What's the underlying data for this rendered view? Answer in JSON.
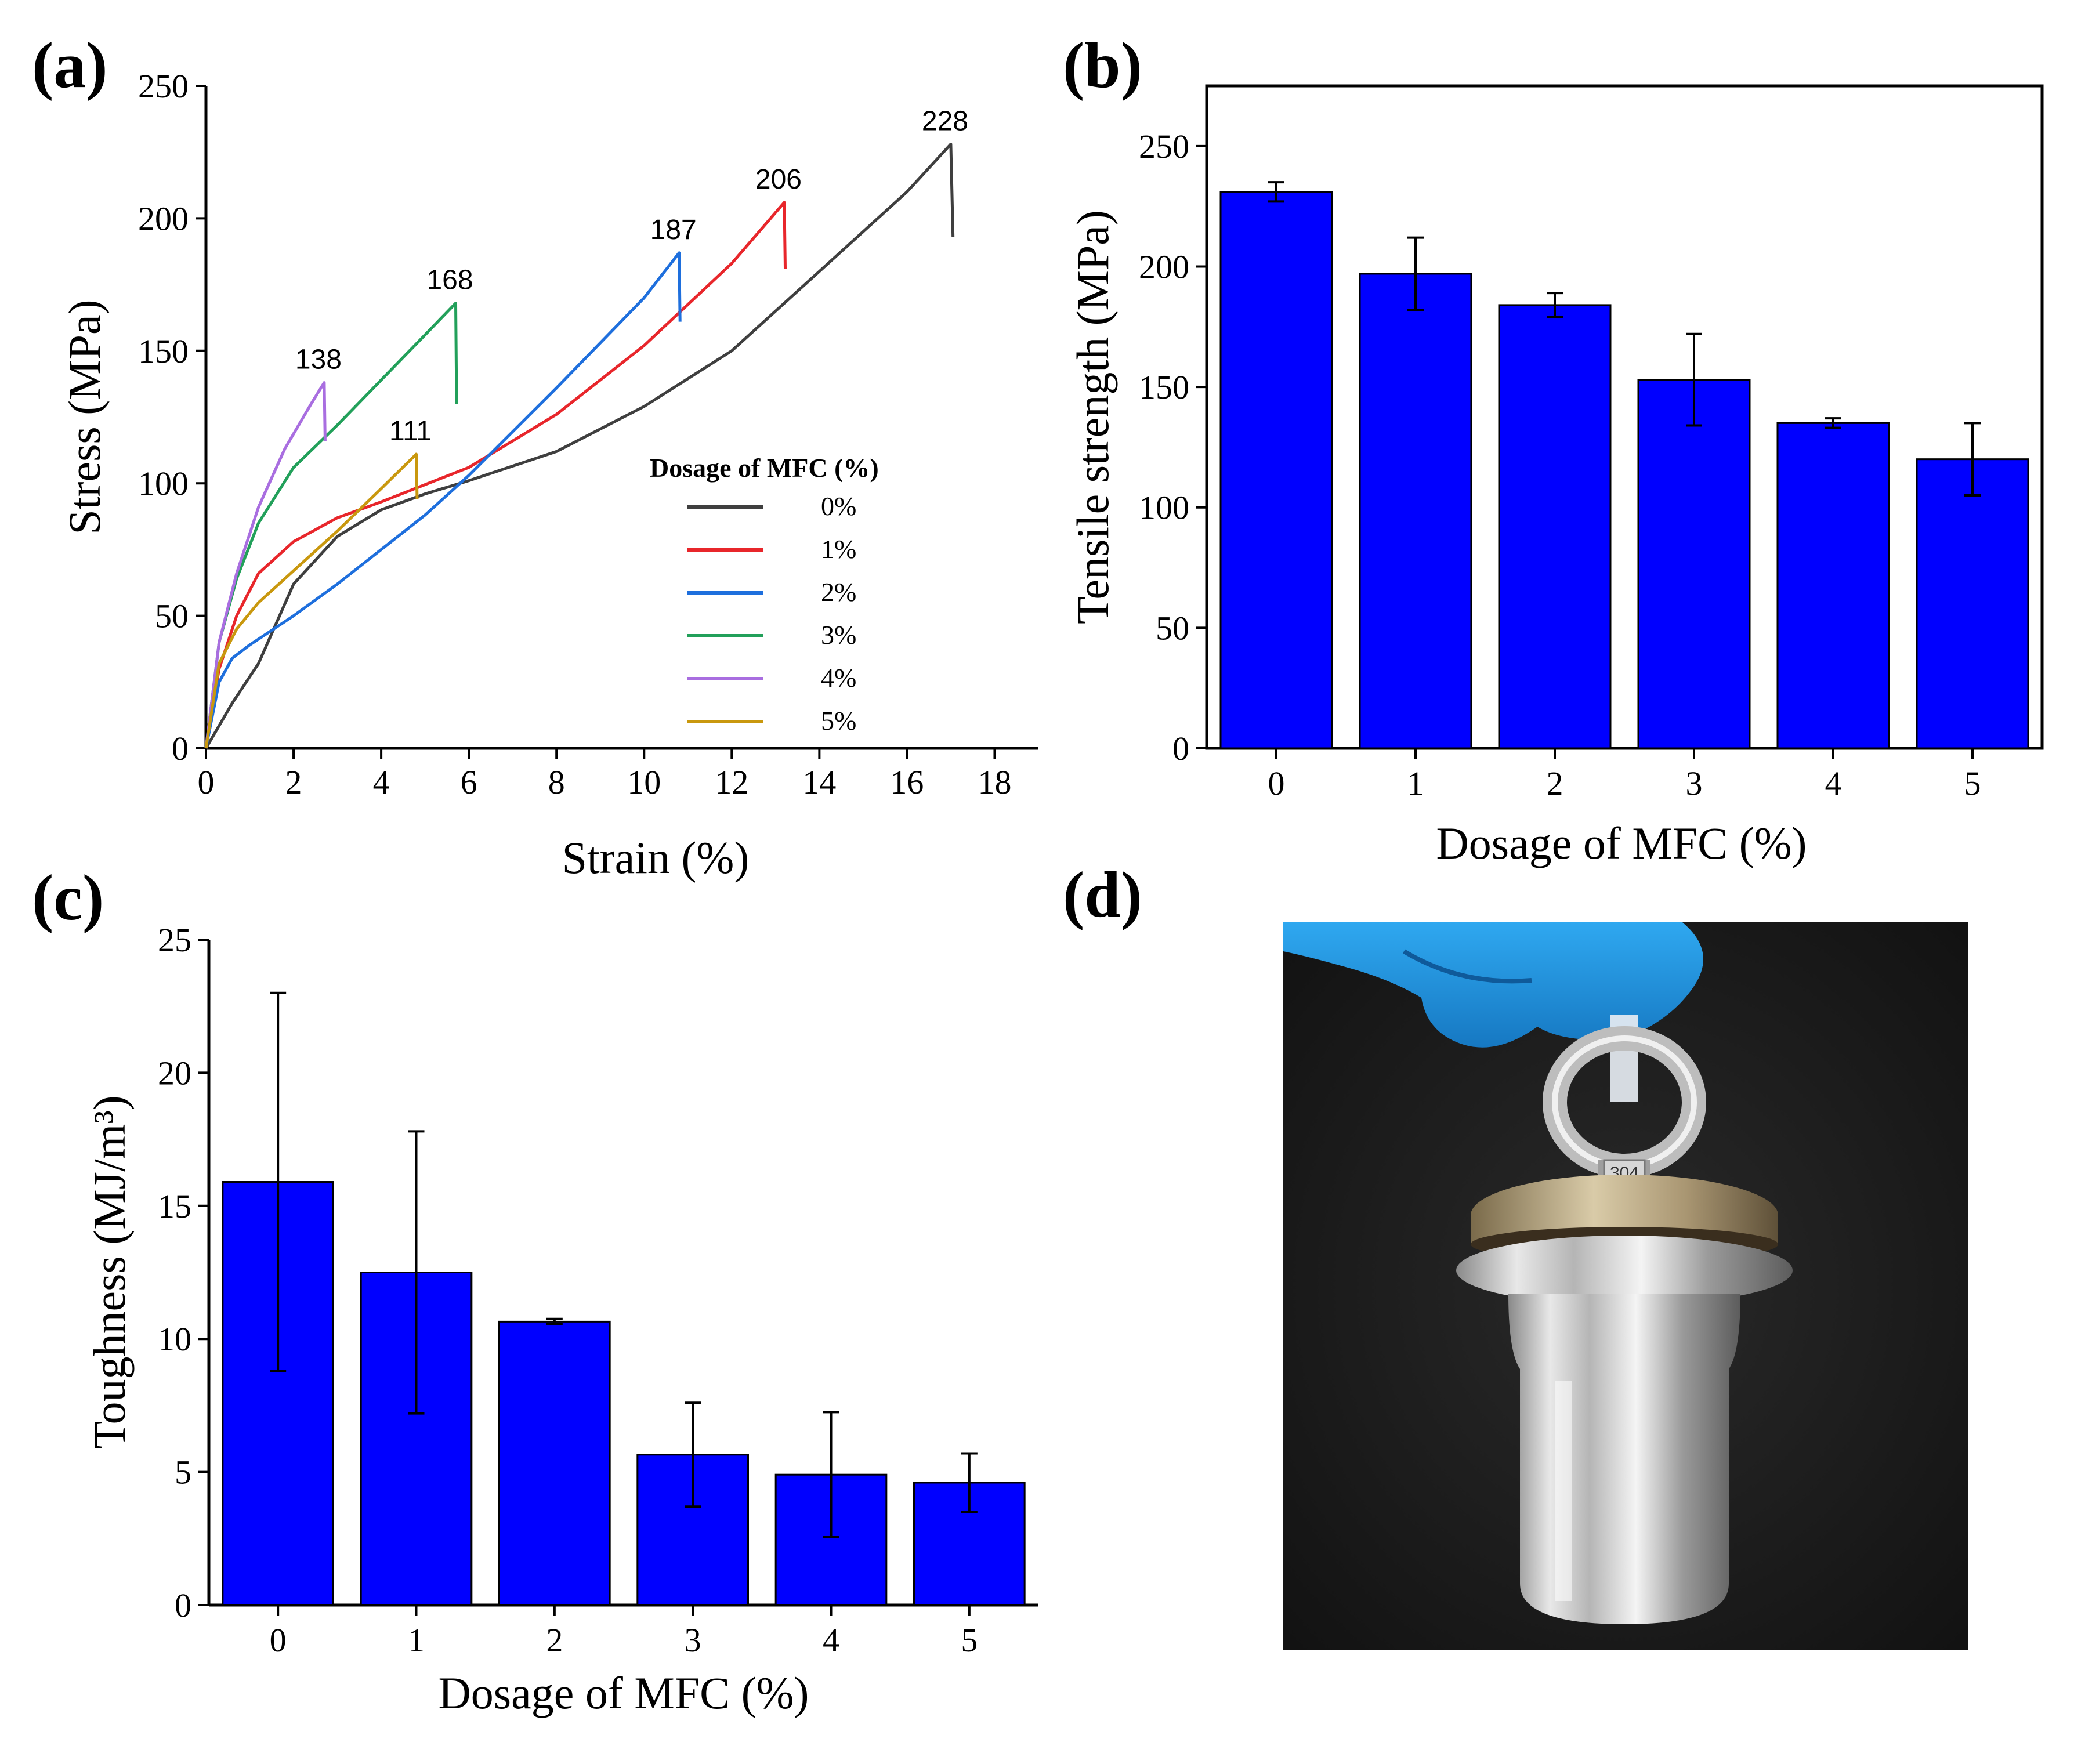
{
  "panels": {
    "a": {
      "label": "(a)"
    },
    "b": {
      "label": "(b)"
    },
    "c": {
      "label": "(c)"
    },
    "d": {
      "label": "(d)"
    }
  },
  "photo": {
    "weight_stamp": "304",
    "colors": {
      "glove": "#1e95e6",
      "background": "#1a1a1a",
      "metal": "#c9c9c9"
    }
  },
  "chart_data": [
    {
      "id": "a",
      "type": "line",
      "xlabel": "Strain (%)",
      "ylabel": "Stress (MPa)",
      "xlim": [
        0,
        19
      ],
      "ylim": [
        0,
        250
      ],
      "xticks": [
        "0",
        "2",
        "4",
        "6",
        "8",
        "10",
        "12",
        "14",
        "16",
        "18"
      ],
      "yticks": [
        "0",
        "50",
        "100",
        "150",
        "200",
        "250"
      ],
      "legend": {
        "title": "Dosage of  MFC (%)",
        "position": "center-right"
      },
      "series": [
        {
          "name": "0%",
          "color": "#3f3f3f",
          "peak_label": "228",
          "x": [
            0,
            0.6,
            1.2,
            2.0,
            3.0,
            4.0,
            5.0,
            6.0,
            8.0,
            10.0,
            12.0,
            14.0,
            16.0,
            17.0,
            17.0,
            17.05
          ],
          "y": [
            0,
            17,
            32,
            62,
            80,
            90,
            96,
            101,
            112,
            129,
            150,
            180,
            210,
            228,
            228,
            193
          ]
        },
        {
          "name": "1%",
          "color": "#e8262b",
          "peak_label": "206",
          "x": [
            0,
            0.3,
            0.7,
            1.2,
            2.0,
            3.0,
            4.0,
            6.0,
            8.0,
            10.0,
            12.0,
            13.2,
            13.2,
            13.22
          ],
          "y": [
            0,
            30,
            50,
            66,
            78,
            87,
            93,
            106,
            126,
            152,
            183,
            206,
            206,
            181
          ]
        },
        {
          "name": "2%",
          "color": "#1e6fdd",
          "peak_label": "187",
          "x": [
            0,
            0.3,
            0.6,
            1.0,
            2.0,
            3.0,
            4.0,
            5.0,
            6.0,
            8.0,
            10.0,
            10.8,
            10.8,
            10.82
          ],
          "y": [
            0,
            25,
            34,
            39,
            50,
            62,
            75,
            88,
            103,
            136,
            170,
            187,
            187,
            161
          ]
        },
        {
          "name": "3%",
          "color": "#22a05a",
          "peak_label": "168",
          "x": [
            0,
            0.3,
            0.7,
            1.2,
            2.0,
            3.0,
            4.0,
            5.0,
            5.7,
            5.7,
            5.72
          ],
          "y": [
            0,
            40,
            64,
            85,
            106,
            122,
            139,
            156,
            168,
            168,
            130
          ]
        },
        {
          "name": "4%",
          "color": "#a96ee0",
          "peak_label": "138",
          "x": [
            0,
            0.3,
            0.7,
            1.2,
            1.8,
            2.4,
            2.7,
            2.7,
            2.72
          ],
          "y": [
            0,
            40,
            66,
            91,
            113,
            130,
            138,
            138,
            116
          ]
        },
        {
          "name": "5%",
          "color": "#c9980e",
          "peak_label": "111",
          "x": [
            0,
            0.3,
            0.7,
            1.2,
            2.0,
            3.0,
            4.0,
            4.8,
            4.8,
            4.82
          ],
          "y": [
            0,
            32,
            45,
            55,
            67,
            82,
            98,
            111,
            111,
            94
          ]
        }
      ]
    },
    {
      "id": "b",
      "type": "bar",
      "xlabel": "Dosage of MFC (%)",
      "ylabel": "Tensile strength (MPa)",
      "ylim": [
        0,
        275
      ],
      "yticks": [
        "0",
        "50",
        "100",
        "150",
        "200",
        "250"
      ],
      "categories": [
        "0",
        "1",
        "2",
        "3",
        "4",
        "5"
      ],
      "values": [
        231,
        197,
        184,
        153,
        135,
        120
      ],
      "errors": [
        4,
        15,
        5,
        19,
        2,
        15
      ],
      "color": "#0000ff"
    },
    {
      "id": "c",
      "type": "bar",
      "xlabel": "Dosage of MFC (%)",
      "ylabel": "Toughness (MJ/m³)",
      "ylim": [
        0,
        25
      ],
      "yticks": [
        "0",
        "5",
        "10",
        "15",
        "20",
        "25"
      ],
      "categories": [
        "0",
        "1",
        "2",
        "3",
        "4",
        "5"
      ],
      "values": [
        15.9,
        12.5,
        10.65,
        5.65,
        4.9,
        4.6
      ],
      "errors": [
        7.1,
        5.3,
        0.1,
        1.95,
        2.35,
        1.1
      ],
      "color": "#0000ff"
    }
  ]
}
